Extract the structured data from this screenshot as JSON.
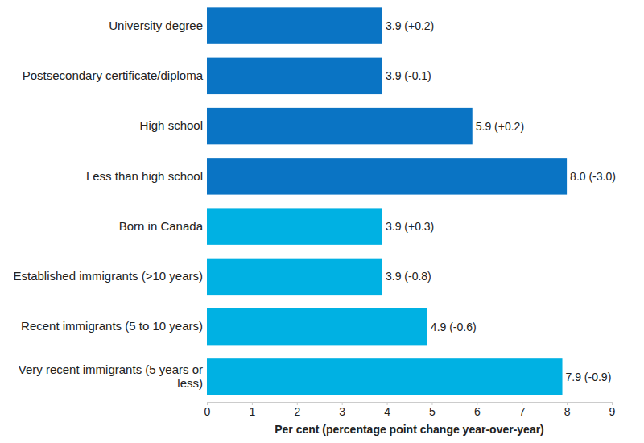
{
  "chart_data": {
    "type": "bar",
    "orientation": "horizontal",
    "categories": [
      "University degree",
      "Postsecondary certificate/diploma",
      "High school",
      "Less than high school",
      "Born in Canada",
      "Established immigrants (>10 years)",
      "Recent immigrants (5 to 10 years)",
      "Very recent immigrants (5 years or less)"
    ],
    "values": [
      3.9,
      3.9,
      5.9,
      8.0,
      3.9,
      3.9,
      4.9,
      7.9
    ],
    "value_labels": [
      "3.9 (+0.2)",
      "3.9 (-0.1)",
      "5.9 (+0.2)",
      "8.0 (-3.0)",
      "3.9 (+0.3)",
      "3.9 (-0.8)",
      "4.9 (-0.6)",
      "7.9 (-0.9)"
    ],
    "colors": [
      "#0a74c4",
      "#0a74c4",
      "#0a74c4",
      "#0a74c4",
      "#00b1e3",
      "#00b1e3",
      "#00b1e3",
      "#00b1e3"
    ],
    "data_labels": true,
    "x_label": "Per cent (percentage point change year-over-year)",
    "xlim": [
      0,
      9
    ],
    "xticks": [
      0,
      1,
      2,
      3,
      4,
      5,
      6,
      7,
      8,
      9
    ],
    "grid": false
  }
}
